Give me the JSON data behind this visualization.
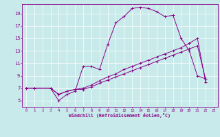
{
  "background_color": "#c8eaea",
  "line_color": "#880088",
  "xlabel": "Windchill (Refroidissement éolien,°C)",
  "xlim": [
    -0.5,
    23.5
  ],
  "ylim": [
    4,
    20.5
  ],
  "yticks": [
    5,
    7,
    9,
    11,
    13,
    15,
    17,
    19
  ],
  "xticks": [
    0,
    1,
    2,
    3,
    4,
    5,
    6,
    7,
    8,
    9,
    10,
    11,
    12,
    13,
    14,
    15,
    16,
    17,
    18,
    19,
    20,
    21,
    22,
    23
  ],
  "series1_x": [
    0,
    1,
    3,
    4,
    5,
    6,
    7,
    8,
    9,
    10,
    11,
    12,
    13,
    14,
    15,
    16,
    17,
    18,
    19,
    20,
    21,
    22
  ],
  "series1_y": [
    7,
    7,
    7,
    5,
    6,
    6.5,
    10.5,
    10.5,
    10,
    14,
    17.5,
    18.5,
    19.8,
    20,
    19.8,
    19.3,
    18.5,
    18.7,
    15,
    13,
    9,
    8.5
  ],
  "series2_x": [
    0,
    1,
    3,
    4,
    5,
    6,
    7,
    8,
    9,
    10,
    11,
    12,
    13,
    14,
    15,
    16,
    17,
    18,
    19,
    20,
    21,
    22
  ],
  "series2_y": [
    7,
    7,
    7,
    6,
    6.5,
    6.8,
    7,
    7.5,
    8.2,
    8.8,
    9.3,
    10,
    10.5,
    11,
    11.5,
    12,
    12.5,
    13,
    13.5,
    14.2,
    15,
    8
  ],
  "series3_x": [
    0,
    1,
    3,
    4,
    5,
    6,
    7,
    8,
    9,
    10,
    11,
    12,
    13,
    14,
    15,
    16,
    17,
    18,
    19,
    20,
    21,
    22
  ],
  "series3_y": [
    7,
    7,
    7,
    6,
    6.5,
    6.8,
    6.8,
    7.2,
    7.8,
    8.3,
    8.8,
    9.3,
    9.8,
    10.3,
    10.8,
    11.3,
    11.8,
    12.3,
    12.8,
    13.3,
    13.8,
    8.5
  ]
}
